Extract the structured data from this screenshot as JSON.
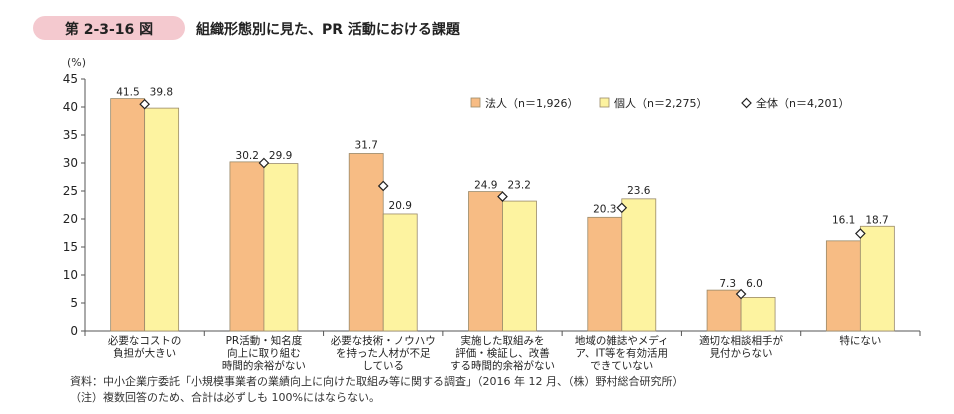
{
  "figure": {
    "number": "第 2-3-16 図",
    "title": "組織形態別に見た、PR 活動における課題"
  },
  "chart_data": {
    "type": "bar",
    "ylabel": "(%)",
    "ylim": [
      0,
      45
    ],
    "yticks": [
      0,
      5,
      10,
      15,
      20,
      25,
      30,
      35,
      40,
      45
    ],
    "grid": false,
    "legend_position": "top-right",
    "categories": [
      [
        "必要なコストの",
        "負担が大きい"
      ],
      [
        "PR活動・知名度",
        "向上に取り組む",
        "時間的余裕がない"
      ],
      [
        "必要な技術・ノウハウ",
        "を持った人材が不足",
        "している"
      ],
      [
        "実施した取組みを",
        "評価・検証し、改善",
        "する時間的余裕がない"
      ],
      [
        "地域の雑誌やメディ",
        "ア、IT等を有効活用",
        "できていない"
      ],
      [
        "適切な相談相手が",
        "見付からない"
      ],
      [
        "特にない"
      ]
    ],
    "series": [
      {
        "name": "法人（n＝1,926）",
        "type": "bar",
        "color": "#f7bc84",
        "values": [
          41.5,
          30.2,
          31.7,
          24.9,
          20.3,
          7.3,
          16.1
        ],
        "labels": [
          "41.5",
          "30.2",
          "31.7",
          "24.9",
          "20.3",
          "7.3",
          "16.1"
        ]
      },
      {
        "name": "個人（n＝2,275）",
        "type": "bar",
        "color": "#fdf3a0",
        "values": [
          39.8,
          29.9,
          20.9,
          23.2,
          23.6,
          6.0,
          18.7
        ],
        "labels": [
          "39.8",
          "29.9",
          "20.9",
          "23.2",
          "23.6",
          "6.0",
          "18.7"
        ]
      },
      {
        "name": "全体（n＝4,201）",
        "type": "marker",
        "values": [
          40.5,
          30.0,
          25.9,
          24.0,
          22.0,
          6.6,
          17.4
        ]
      }
    ]
  },
  "notes": [
    "資料：中小企業庁委託「小規模事業者の業績向上に向けた取組み等に関する調査」（2016 年 12 月、（株）野村総合研究所）",
    "（注）複数回答のため、合計は必ずしも 100%にはならない。"
  ]
}
